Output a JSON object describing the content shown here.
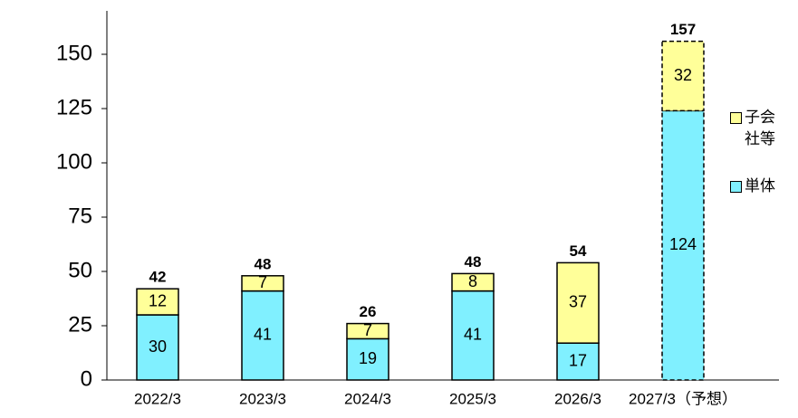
{
  "chart_data": {
    "type": "stacked_bar",
    "categories": [
      "2022/3",
      "2023/3",
      "2024/3",
      "2025/3",
      "2026/3",
      "2027/3（予想）"
    ],
    "series": [
      {
        "name": "単体",
        "color": "#80f0ff",
        "values": [
          30,
          41,
          19,
          41,
          17,
          124
        ]
      },
      {
        "name": "子会社等",
        "color": "#ffff99",
        "values": [
          12,
          7,
          7,
          8,
          37,
          32
        ]
      }
    ],
    "totals": [
      42,
      48,
      26,
      48,
      54,
      157
    ],
    "border_style": [
      "solid",
      "solid",
      "solid",
      "solid",
      "solid",
      "dashed"
    ],
    "ylim": [
      0,
      170
    ],
    "yticks": [
      0,
      25,
      50,
      75,
      100,
      125,
      150
    ],
    "grid": false
  }
}
